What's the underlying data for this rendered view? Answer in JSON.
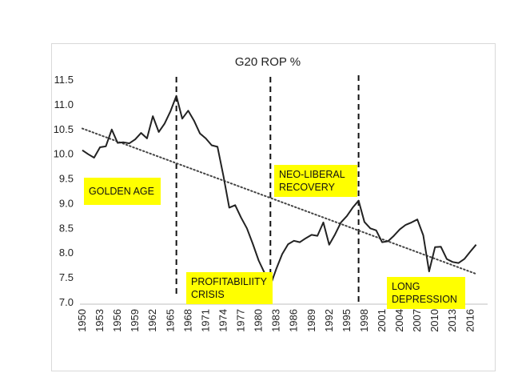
{
  "chart_data": {
    "type": "line",
    "title": "G20 ROP %",
    "xlabel": "",
    "ylabel": "",
    "xlim": [
      1950,
      2018
    ],
    "ylim": [
      7.0,
      11.5
    ],
    "yticks": [
      "11.5",
      "11.0",
      "10.5",
      "10.0",
      "9.5",
      "9.0",
      "8.5",
      "8.0",
      "7.5",
      "7.0"
    ],
    "xticks": [
      "1950",
      "1953",
      "1956",
      "1959",
      "1962",
      "1965",
      "1968",
      "1971",
      "1974",
      "1977",
      "1980",
      "1983",
      "1986",
      "1989",
      "1992",
      "1995",
      "1998",
      "2001",
      "2004",
      "2007",
      "2010",
      "2013",
      "2016"
    ],
    "grid": false,
    "legend": "none",
    "series": [
      {
        "x": [
          1950,
          1951,
          1952,
          1953,
          1954,
          1955,
          1956,
          1957,
          1958,
          1959,
          1960,
          1961,
          1962,
          1963,
          1964,
          1965,
          1966,
          1967,
          1968,
          1969,
          1970,
          1971,
          1972,
          1973,
          1974,
          1975,
          1976,
          1977,
          1978,
          1979,
          1980,
          1981,
          1982,
          1983,
          1984,
          1985,
          1986,
          1987,
          1988,
          1989,
          1990,
          1991,
          1992,
          1993,
          1994,
          1995,
          1996,
          1997,
          1998,
          1999,
          2000,
          2001,
          2002,
          2003,
          2004,
          2005,
          2006,
          2007,
          2008,
          2009,
          2010,
          2011,
          2012,
          2013,
          2014,
          2015,
          2016,
          2017
        ],
        "y": [
          10.08,
          10.0,
          9.93,
          10.14,
          10.16,
          10.5,
          10.23,
          10.24,
          10.22,
          10.3,
          10.43,
          10.32,
          10.77,
          10.45,
          10.62,
          10.87,
          11.18,
          10.72,
          10.88,
          10.68,
          10.42,
          10.32,
          10.18,
          10.15,
          9.56,
          8.92,
          8.97,
          8.72,
          8.5,
          8.19,
          7.85,
          7.6,
          7.35,
          7.68,
          7.98,
          8.18,
          8.25,
          8.22,
          8.3,
          8.37,
          8.35,
          8.62,
          8.17,
          8.38,
          8.62,
          8.75,
          8.92,
          9.06,
          8.63,
          8.5,
          8.46,
          8.22,
          8.24,
          8.35,
          8.48,
          8.57,
          8.62,
          8.68,
          8.36,
          7.63,
          8.12,
          8.13,
          7.88,
          7.82,
          7.8,
          7.88,
          8.03,
          8.17
        ],
        "color": "#222222"
      }
    ],
    "trendline": {
      "x": [
        1950,
        2017
      ],
      "y": [
        10.52,
        7.58
      ],
      "style": "dotted"
    },
    "dividers": [
      1966,
      1982,
      1997
    ],
    "annotations": [
      {
        "lines": [
          "GOLDEN AGE"
        ],
        "bg": "#ffff00"
      },
      {
        "lines": [
          "PROFITABILIITY",
          "CRISIS"
        ],
        "bg": "#ffff00"
      },
      {
        "lines": [
          "NEO-LIBERAL",
          "RECOVERY"
        ],
        "bg": "#ffff00"
      },
      {
        "lines": [
          "LONG",
          "DEPRESSION"
        ],
        "bg": "#ffff00"
      }
    ]
  }
}
